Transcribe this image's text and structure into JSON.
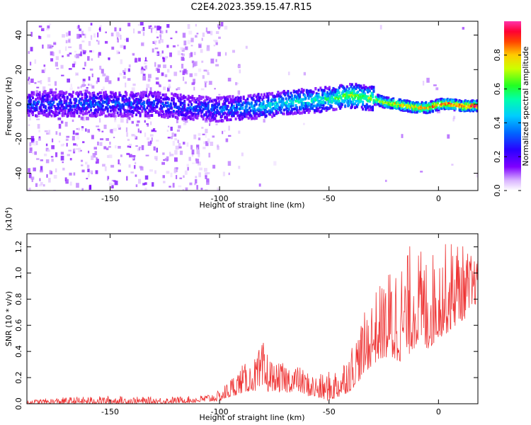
{
  "title": "C2E4.2023.359.15.47.R15",
  "chart_data": [
    {
      "type": "heatmap",
      "xlabel": "Height of straight line (km)",
      "ylabel": "Frequency (Hz)",
      "xlim": [
        -188,
        18
      ],
      "ylim": [
        -50,
        48
      ],
      "x_ticks": [
        "-150",
        "-100",
        "-50",
        "0"
      ],
      "x_tick_values": [
        -150,
        -100,
        -50,
        0
      ],
      "y_ticks": [
        "40",
        "20",
        "0",
        "-20",
        "-40"
      ],
      "y_tick_values": [
        40,
        20,
        0,
        -20,
        -40
      ],
      "colorbar": {
        "label": "Normalized spectral amplitude",
        "range": [
          0,
          1
        ],
        "ticks": [
          "0.0",
          "0.2",
          "0.4",
          "0.6",
          "0.8"
        ],
        "tick_values": [
          0.0,
          0.2,
          0.4,
          0.6,
          0.8
        ]
      },
      "ridge": {
        "x": [
          -188,
          -175,
          -160,
          -145,
          -130,
          -115,
          -100,
          -90,
          -80,
          -70,
          -60,
          -50,
          -45,
          -40,
          -35,
          -30,
          -25,
          -20,
          -15,
          -10,
          -5,
          0,
          5,
          10,
          18
        ],
        "frequency": [
          0,
          0,
          0,
          0,
          0,
          -2,
          -3,
          -2,
          -1,
          1,
          2,
          3,
          4,
          5,
          4,
          3,
          1,
          0,
          -1,
          -2,
          -2,
          0,
          0,
          -1,
          -1
        ],
        "amplitude": [
          0.3,
          0.3,
          0.32,
          0.3,
          0.3,
          0.3,
          0.32,
          0.38,
          0.45,
          0.5,
          0.5,
          0.55,
          0.6,
          0.7,
          0.62,
          0.68,
          0.75,
          0.85,
          0.82,
          0.85,
          0.88,
          0.9,
          0.95,
          0.95,
          0.95
        ]
      }
    },
    {
      "type": "line",
      "xlabel": "Height of straight line (km)",
      "ylabel": "SNR (10 * v/v)",
      "ylabel_unit": "(x10",
      "ylabel_unit_exp": "4",
      "ylabel_unit_close": ")",
      "xlim": [
        -188,
        18
      ],
      "ylim": [
        0,
        1.3
      ],
      "x_ticks": [
        "-150",
        "-100",
        "-50",
        "0"
      ],
      "x_tick_values": [
        -150,
        -100,
        -50,
        0
      ],
      "y_ticks": [
        "0.0",
        "0.2",
        "0.4",
        "0.6",
        "0.8",
        "1.0",
        "1.2"
      ],
      "y_tick_values": [
        0.0,
        0.2,
        0.4,
        0.6,
        0.8,
        1.0,
        1.2
      ],
      "series": [
        {
          "color": "#ee3333",
          "x": [
            -188,
            -170,
            -150,
            -130,
            -110,
            -100,
            -95,
            -90,
            -85,
            -80,
            -75,
            -70,
            -65,
            -60,
            -55,
            -50,
            -45,
            -40,
            -35,
            -30,
            -25,
            -20,
            -15,
            -12,
            -10,
            -5,
            0,
            5,
            8,
            12,
            15,
            18
          ],
          "envelope_low": [
            0.0,
            0.0,
            0.0,
            0.0,
            0.01,
            0.02,
            0.05,
            0.08,
            0.1,
            0.08,
            0.1,
            0.08,
            0.1,
            0.06,
            0.04,
            0.02,
            0.05,
            0.1,
            0.2,
            0.3,
            0.35,
            0.3,
            0.35,
            0.4,
            0.45,
            0.4,
            0.5,
            0.55,
            0.6,
            0.65,
            0.7,
            0.8
          ],
          "envelope_high": [
            0.03,
            0.05,
            0.06,
            0.05,
            0.06,
            0.1,
            0.2,
            0.3,
            0.32,
            0.48,
            0.3,
            0.32,
            0.3,
            0.25,
            0.22,
            0.25,
            0.3,
            0.45,
            0.65,
            0.85,
            0.95,
            1.15,
            1.1,
            1.3,
            1.2,
            1.15,
            1.2,
            1.25,
            1.3,
            1.2,
            1.15,
            1.1
          ]
        }
      ]
    }
  ]
}
